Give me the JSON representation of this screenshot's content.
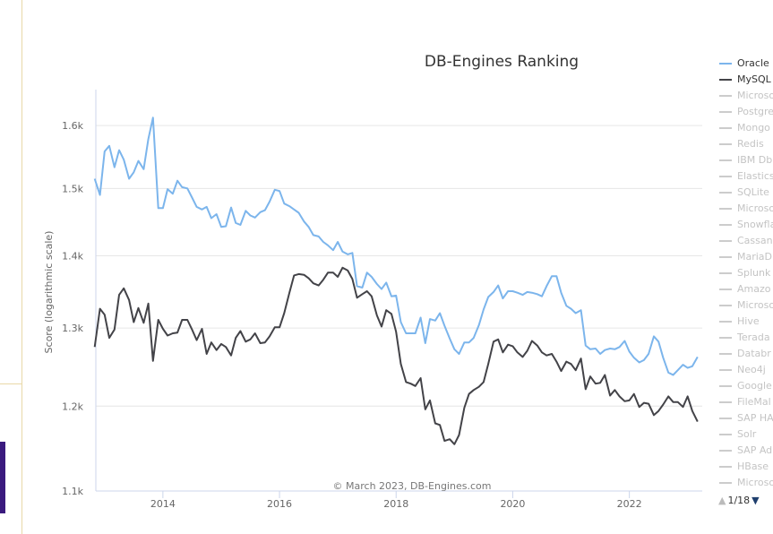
{
  "chart_data": {
    "type": "line",
    "title": "DB-Engines Ranking",
    "ylabel": "Score (logarithmic scale)",
    "yscale": "log",
    "ylim": [
      1100,
      1660
    ],
    "xlim": [
      2012.85,
      2023.25
    ],
    "yticks": [
      {
        "value": 1100,
        "label": "1.1k"
      },
      {
        "value": 1200,
        "label": "1.2k"
      },
      {
        "value": 1300,
        "label": "1.3k"
      },
      {
        "value": 1400,
        "label": "1.4k"
      },
      {
        "value": 1500,
        "label": "1.5k"
      },
      {
        "value": 1600,
        "label": "1.6k"
      }
    ],
    "xticks": [
      {
        "value": 2014,
        "label": "2014"
      },
      {
        "value": 2016,
        "label": "2016"
      },
      {
        "value": 2018,
        "label": "2018"
      },
      {
        "value": 2020,
        "label": "2020"
      },
      {
        "value": 2022,
        "label": "2022"
      }
    ],
    "grid": true,
    "legend_position": "right",
    "credits": "© March 2023, DB-Engines.com",
    "series": [
      {
        "name": "Oracle",
        "color": "#7cb5ec",
        "points": [
          [
            2012.83,
            1515
          ],
          [
            2012.92,
            1490
          ],
          [
            2013.0,
            1558
          ],
          [
            2013.08,
            1567
          ],
          [
            2013.17,
            1533
          ],
          [
            2013.25,
            1560
          ],
          [
            2013.33,
            1545
          ],
          [
            2013.42,
            1515
          ],
          [
            2013.5,
            1525
          ],
          [
            2013.58,
            1543
          ],
          [
            2013.67,
            1530
          ],
          [
            2013.75,
            1578
          ],
          [
            2013.83,
            1613
          ],
          [
            2013.92,
            1470
          ],
          [
            2014.0,
            1470
          ],
          [
            2014.08,
            1499
          ],
          [
            2014.17,
            1492
          ],
          [
            2014.25,
            1512
          ],
          [
            2014.33,
            1502
          ],
          [
            2014.42,
            1500
          ],
          [
            2014.5,
            1486
          ],
          [
            2014.58,
            1472
          ],
          [
            2014.67,
            1468
          ],
          [
            2014.75,
            1472
          ],
          [
            2014.83,
            1455
          ],
          [
            2014.92,
            1461
          ],
          [
            2015.0,
            1442
          ],
          [
            2015.08,
            1443
          ],
          [
            2015.17,
            1471
          ],
          [
            2015.25,
            1448
          ],
          [
            2015.33,
            1445
          ],
          [
            2015.42,
            1466
          ],
          [
            2015.5,
            1459
          ],
          [
            2015.58,
            1456
          ],
          [
            2015.67,
            1464
          ],
          [
            2015.75,
            1467
          ],
          [
            2015.83,
            1480
          ],
          [
            2015.92,
            1498
          ],
          [
            2016.0,
            1496
          ],
          [
            2016.08,
            1477
          ],
          [
            2016.17,
            1473
          ],
          [
            2016.25,
            1468
          ],
          [
            2016.33,
            1463
          ],
          [
            2016.42,
            1450
          ],
          [
            2016.5,
            1442
          ],
          [
            2016.58,
            1430
          ],
          [
            2016.67,
            1428
          ],
          [
            2016.75,
            1420
          ],
          [
            2016.83,
            1415
          ],
          [
            2016.92,
            1408
          ],
          [
            2017.0,
            1420
          ],
          [
            2017.08,
            1406
          ],
          [
            2017.17,
            1402
          ],
          [
            2017.25,
            1404
          ],
          [
            2017.33,
            1357
          ],
          [
            2017.42,
            1355
          ],
          [
            2017.5,
            1376
          ],
          [
            2017.58,
            1370
          ],
          [
            2017.67,
            1360
          ],
          [
            2017.75,
            1353
          ],
          [
            2017.83,
            1362
          ],
          [
            2017.92,
            1343
          ],
          [
            2018.0,
            1344
          ],
          [
            2018.08,
            1308
          ],
          [
            2018.17,
            1293
          ],
          [
            2018.25,
            1293
          ],
          [
            2018.33,
            1293
          ],
          [
            2018.42,
            1314
          ],
          [
            2018.5,
            1280
          ],
          [
            2018.58,
            1312
          ],
          [
            2018.67,
            1310
          ],
          [
            2018.75,
            1320
          ],
          [
            2018.83,
            1303
          ],
          [
            2018.92,
            1286
          ],
          [
            2019.0,
            1272
          ],
          [
            2019.08,
            1266
          ],
          [
            2019.17,
            1281
          ],
          [
            2019.25,
            1281
          ],
          [
            2019.33,
            1287
          ],
          [
            2019.42,
            1304
          ],
          [
            2019.5,
            1325
          ],
          [
            2019.58,
            1342
          ],
          [
            2019.67,
            1349
          ],
          [
            2019.75,
            1358
          ],
          [
            2019.83,
            1340
          ],
          [
            2019.92,
            1350
          ],
          [
            2020.0,
            1350
          ],
          [
            2020.08,
            1348
          ],
          [
            2020.17,
            1345
          ],
          [
            2020.25,
            1349
          ],
          [
            2020.33,
            1348
          ],
          [
            2020.42,
            1346
          ],
          [
            2020.5,
            1343
          ],
          [
            2020.58,
            1357
          ],
          [
            2020.67,
            1371
          ],
          [
            2020.75,
            1371
          ],
          [
            2020.83,
            1348
          ],
          [
            2020.92,
            1330
          ],
          [
            2021.0,
            1326
          ],
          [
            2021.08,
            1320
          ],
          [
            2021.17,
            1324
          ],
          [
            2021.25,
            1277
          ],
          [
            2021.33,
            1272
          ],
          [
            2021.42,
            1273
          ],
          [
            2021.5,
            1266
          ],
          [
            2021.58,
            1271
          ],
          [
            2021.67,
            1273
          ],
          [
            2021.75,
            1272
          ],
          [
            2021.83,
            1275
          ],
          [
            2021.92,
            1283
          ],
          [
            2022.0,
            1269
          ],
          [
            2022.08,
            1261
          ],
          [
            2022.17,
            1255
          ],
          [
            2022.25,
            1258
          ],
          [
            2022.33,
            1266
          ],
          [
            2022.42,
            1289
          ],
          [
            2022.5,
            1282
          ],
          [
            2022.58,
            1261
          ],
          [
            2022.67,
            1242
          ],
          [
            2022.75,
            1239
          ],
          [
            2022.83,
            1245
          ],
          [
            2022.92,
            1252
          ],
          [
            2023.0,
            1248
          ],
          [
            2023.08,
            1250
          ],
          [
            2023.17,
            1262
          ]
        ]
      },
      {
        "name": "MySQL",
        "color": "#434348",
        "points": [
          [
            2012.83,
            1275
          ],
          [
            2012.92,
            1326
          ],
          [
            2013.0,
            1318
          ],
          [
            2013.08,
            1287
          ],
          [
            2013.17,
            1298
          ],
          [
            2013.25,
            1345
          ],
          [
            2013.33,
            1354
          ],
          [
            2013.42,
            1338
          ],
          [
            2013.5,
            1308
          ],
          [
            2013.58,
            1327
          ],
          [
            2013.67,
            1307
          ],
          [
            2013.75,
            1333
          ],
          [
            2013.83,
            1257
          ],
          [
            2013.92,
            1311
          ],
          [
            2014.0,
            1299
          ],
          [
            2014.08,
            1290
          ],
          [
            2014.17,
            1293
          ],
          [
            2014.25,
            1294
          ],
          [
            2014.33,
            1311
          ],
          [
            2014.42,
            1311
          ],
          [
            2014.5,
            1298
          ],
          [
            2014.58,
            1284
          ],
          [
            2014.67,
            1299
          ],
          [
            2014.75,
            1266
          ],
          [
            2014.83,
            1281
          ],
          [
            2014.92,
            1271
          ],
          [
            2015.0,
            1279
          ],
          [
            2015.08,
            1275
          ],
          [
            2015.17,
            1264
          ],
          [
            2015.25,
            1287
          ],
          [
            2015.33,
            1296
          ],
          [
            2015.42,
            1282
          ],
          [
            2015.5,
            1285
          ],
          [
            2015.58,
            1293
          ],
          [
            2015.67,
            1280
          ],
          [
            2015.75,
            1281
          ],
          [
            2015.83,
            1289
          ],
          [
            2015.92,
            1301
          ],
          [
            2016.0,
            1301
          ],
          [
            2016.08,
            1320
          ],
          [
            2016.17,
            1348
          ],
          [
            2016.25,
            1372
          ],
          [
            2016.33,
            1374
          ],
          [
            2016.42,
            1373
          ],
          [
            2016.5,
            1368
          ],
          [
            2016.58,
            1361
          ],
          [
            2016.67,
            1358
          ],
          [
            2016.75,
            1366
          ],
          [
            2016.83,
            1376
          ],
          [
            2016.92,
            1376
          ],
          [
            2017.0,
            1370
          ],
          [
            2017.08,
            1383
          ],
          [
            2017.17,
            1379
          ],
          [
            2017.25,
            1367
          ],
          [
            2017.33,
            1341
          ],
          [
            2017.42,
            1346
          ],
          [
            2017.5,
            1350
          ],
          [
            2017.58,
            1343
          ],
          [
            2017.67,
            1317
          ],
          [
            2017.75,
            1302
          ],
          [
            2017.83,
            1324
          ],
          [
            2017.92,
            1319
          ],
          [
            2018.0,
            1295
          ],
          [
            2018.08,
            1253
          ],
          [
            2018.17,
            1230
          ],
          [
            2018.25,
            1228
          ],
          [
            2018.33,
            1225
          ],
          [
            2018.42,
            1235
          ],
          [
            2018.5,
            1196
          ],
          [
            2018.58,
            1207
          ],
          [
            2018.67,
            1179
          ],
          [
            2018.75,
            1177
          ],
          [
            2018.83,
            1158
          ],
          [
            2018.92,
            1160
          ],
          [
            2019.0,
            1154
          ],
          [
            2019.08,
            1165
          ],
          [
            2019.17,
            1198
          ],
          [
            2019.25,
            1215
          ],
          [
            2019.33,
            1220
          ],
          [
            2019.42,
            1224
          ],
          [
            2019.5,
            1230
          ],
          [
            2019.58,
            1253
          ],
          [
            2019.67,
            1282
          ],
          [
            2019.75,
            1285
          ],
          [
            2019.83,
            1268
          ],
          [
            2019.92,
            1278
          ],
          [
            2020.0,
            1276
          ],
          [
            2020.08,
            1268
          ],
          [
            2020.17,
            1262
          ],
          [
            2020.25,
            1270
          ],
          [
            2020.33,
            1283
          ],
          [
            2020.42,
            1277
          ],
          [
            2020.5,
            1268
          ],
          [
            2020.58,
            1264
          ],
          [
            2020.67,
            1266
          ],
          [
            2020.75,
            1256
          ],
          [
            2020.83,
            1244
          ],
          [
            2020.92,
            1256
          ],
          [
            2021.0,
            1253
          ],
          [
            2021.08,
            1245
          ],
          [
            2021.17,
            1260
          ],
          [
            2021.25,
            1221
          ],
          [
            2021.33,
            1237
          ],
          [
            2021.42,
            1228
          ],
          [
            2021.5,
            1229
          ],
          [
            2021.58,
            1239
          ],
          [
            2021.67,
            1213
          ],
          [
            2021.75,
            1220
          ],
          [
            2021.83,
            1212
          ],
          [
            2021.92,
            1206
          ],
          [
            2022.0,
            1207
          ],
          [
            2022.08,
            1215
          ],
          [
            2022.17,
            1199
          ],
          [
            2022.25,
            1204
          ],
          [
            2022.33,
            1203
          ],
          [
            2022.42,
            1189
          ],
          [
            2022.5,
            1194
          ],
          [
            2022.58,
            1202
          ],
          [
            2022.67,
            1212
          ],
          [
            2022.75,
            1205
          ],
          [
            2022.83,
            1205
          ],
          [
            2022.92,
            1199
          ],
          [
            2023.0,
            1212
          ],
          [
            2023.08,
            1194
          ],
          [
            2023.17,
            1181
          ]
        ]
      }
    ]
  },
  "legend": {
    "items": [
      {
        "label": "Oracle",
        "active": true,
        "color": "#7cb5ec"
      },
      {
        "label": "MySQL",
        "active": true,
        "color": "#434348"
      },
      {
        "label": "Microso",
        "active": false
      },
      {
        "label": "Postgre",
        "active": false
      },
      {
        "label": "Mongo",
        "active": false
      },
      {
        "label": "Redis",
        "active": false
      },
      {
        "label": "IBM Db",
        "active": false
      },
      {
        "label": "Elastics",
        "active": false
      },
      {
        "label": "SQLite",
        "active": false
      },
      {
        "label": "Microso",
        "active": false
      },
      {
        "label": "Snowfla",
        "active": false
      },
      {
        "label": "Cassan",
        "active": false
      },
      {
        "label": "MariaD",
        "active": false
      },
      {
        "label": "Splunk",
        "active": false
      },
      {
        "label": "Amazo",
        "active": false
      },
      {
        "label": "Microso",
        "active": false
      },
      {
        "label": "Hive",
        "active": false
      },
      {
        "label": "Terada",
        "active": false
      },
      {
        "label": "Databr",
        "active": false
      },
      {
        "label": "Neo4j",
        "active": false
      },
      {
        "label": "Google",
        "active": false
      },
      {
        "label": "FileMal",
        "active": false
      },
      {
        "label": "SAP HA",
        "active": false
      },
      {
        "label": "Solr",
        "active": false
      },
      {
        "label": "SAP Ad",
        "active": false
      },
      {
        "label": "HBase",
        "active": false
      },
      {
        "label": "Microso",
        "active": false
      }
    ],
    "pager": {
      "text": "1/18",
      "up_icon": "▲",
      "down_icon": "▼"
    }
  }
}
